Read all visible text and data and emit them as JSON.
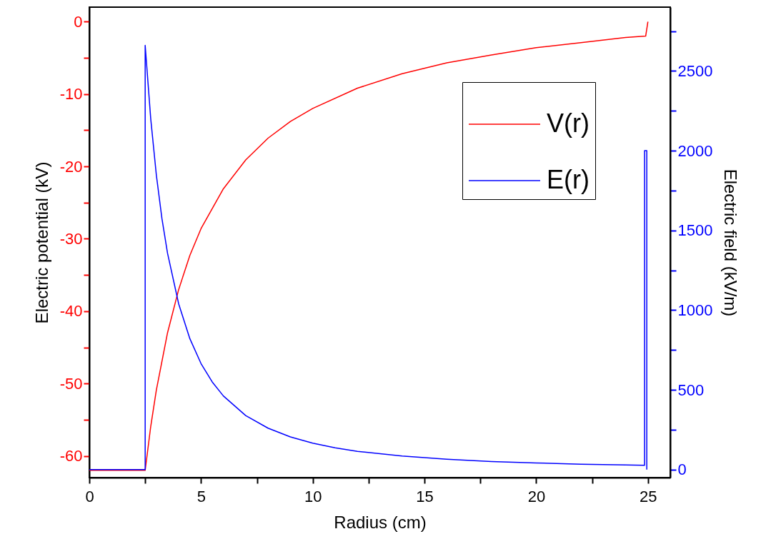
{
  "chart_data": {
    "type": "line",
    "xlabel": "Radius (cm)",
    "ylabel": "Electric potential (kV)",
    "y2label": "Electric field (kV/m)",
    "xlim": [
      0,
      26
    ],
    "xticks": [
      0,
      {
        "value": 2.5,
        "label": null
      },
      5,
      {
        "value": 7.5,
        "label": null
      },
      10,
      {
        "value": 12.5,
        "label": null
      },
      15,
      {
        "value": 17.5,
        "label": null
      },
      20,
      {
        "value": 22.5,
        "label": null
      },
      25
    ],
    "ylim": [
      -63,
      2
    ],
    "yticks": [
      0,
      {
        "value": -5,
        "label": null
      },
      -10,
      {
        "value": -15,
        "label": null
      },
      -20,
      {
        "value": -25,
        "label": null
      },
      -30,
      {
        "value": -35,
        "label": null
      },
      -40,
      {
        "value": -45,
        "label": null
      },
      -50,
      {
        "value": -55,
        "label": null
      },
      -60
    ],
    "y2lim": [
      -50,
      2900
    ],
    "y2ticks": [
      0,
      {
        "value": 250,
        "label": null
      },
      500,
      {
        "value": 750,
        "label": null
      },
      1000,
      {
        "value": 1250,
        "label": null
      },
      1500,
      {
        "value": 1750,
        "label": null
      },
      2000,
      {
        "value": 2250,
        "label": null
      },
      2500,
      {
        "value": 2750,
        "label": null
      }
    ],
    "legend": "top right",
    "series": [
      {
        "name": "V(r)",
        "color": "#ff0000",
        "x": [
          0,
          2.5,
          2.75,
          3,
          3.5,
          4,
          4.5,
          5,
          6,
          7,
          8,
          9,
          10,
          12,
          14,
          16,
          18,
          20,
          22,
          24,
          24.9,
          25
        ],
        "values": [
          -62,
          -62,
          -55.9,
          -50.9,
          -43,
          -37,
          -32.3,
          -28.6,
          -23.1,
          -19.1,
          -16.1,
          -13.8,
          -12,
          -9.2,
          -7.2,
          -5.7,
          -4.6,
          -3.6,
          -2.9,
          -2.2,
          -2,
          0
        ]
      },
      {
        "name": "E(r)",
        "color": "#0000ff",
        "axis": "y2",
        "x": [
          0,
          2.5,
          2.5,
          2.75,
          3,
          3.25,
          3.5,
          4,
          4.5,
          5,
          5.5,
          6,
          7,
          8,
          9,
          10,
          11,
          12,
          14,
          16,
          18,
          20,
          22,
          24,
          24.85,
          24.85,
          24.95,
          24.95
        ],
        "values": [
          0,
          0,
          2660,
          2198,
          1847,
          1574,
          1357,
          1039,
          821,
          665,
          550,
          462,
          339,
          260,
          205,
          166,
          137,
          115,
          85,
          65,
          51,
          42,
          34,
          29,
          27,
          2000,
          2000,
          0
        ]
      }
    ]
  }
}
